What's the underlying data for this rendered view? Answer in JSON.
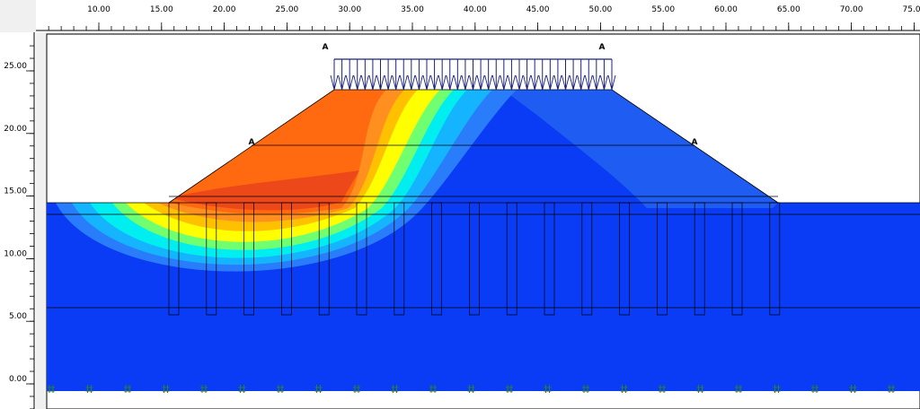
{
  "top_ruler": {
    "labels": [
      "10.00",
      "15.00",
      "20.00",
      "25.00",
      "30.00",
      "35.00",
      "40.00",
      "45.00",
      "50.00",
      "55.00",
      "60.00",
      "65.00",
      "70.00",
      "75.00"
    ]
  },
  "left_ruler": {
    "labels": [
      "25.00",
      "20.00",
      "15.00",
      "10.00",
      "5.00",
      "0.00"
    ]
  },
  "annotations": [
    "A",
    "A",
    "A",
    "A"
  ]
}
